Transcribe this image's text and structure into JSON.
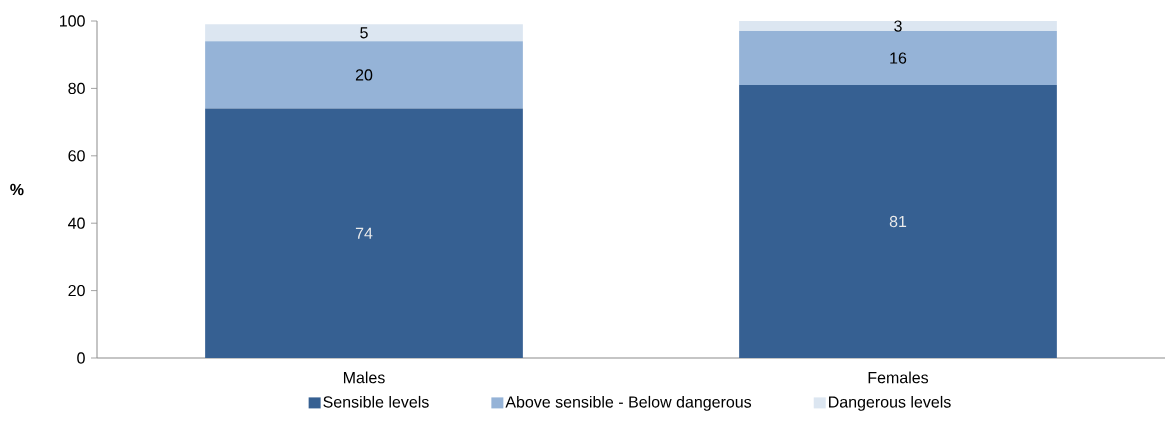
{
  "chart_data": {
    "type": "bar",
    "stacked": true,
    "ylabel": "%",
    "categories": [
      "Males",
      "Females"
    ],
    "series": [
      {
        "name": "Sensible levels",
        "color": "#366092",
        "values": [
          74,
          81
        ]
      },
      {
        "name": "Above sensible - Below dangerous",
        "color": "#95b3d7",
        "values": [
          20,
          16
        ]
      },
      {
        "name": "Dangerous levels",
        "color": "#dce6f1",
        "values": [
          5,
          3
        ]
      }
    ],
    "ylim": [
      0,
      100
    ],
    "yticks": [
      0,
      20,
      40,
      60,
      80,
      100
    ],
    "data_labels": true,
    "legend": "bottom",
    "grid": false
  }
}
